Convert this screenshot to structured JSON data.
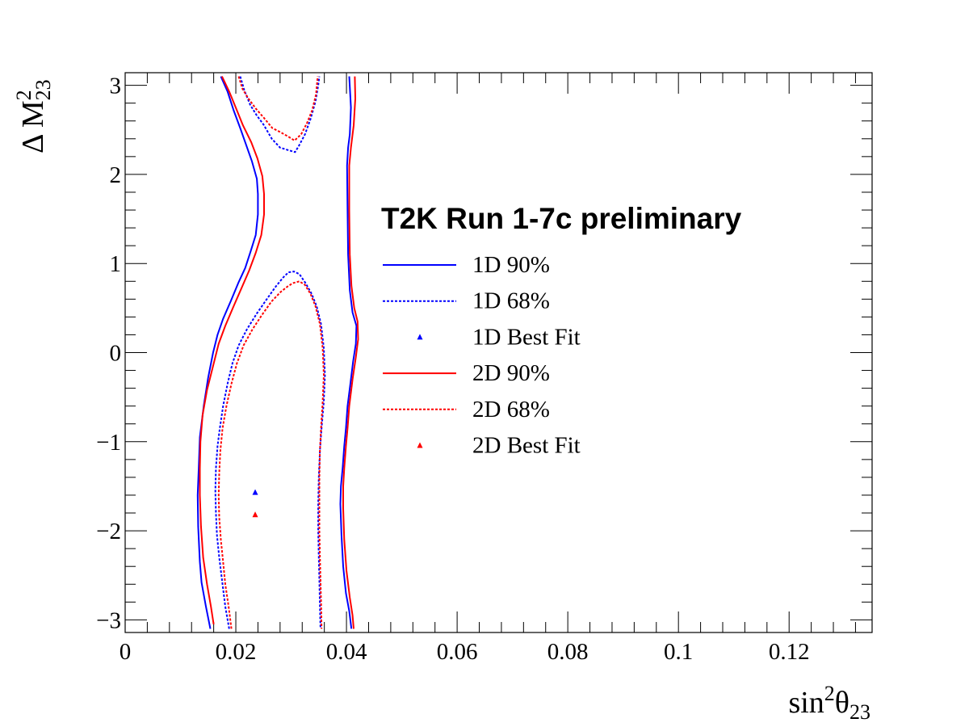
{
  "chart_data": {
    "type": "line",
    "title": "T2K Run 1-7c preliminary",
    "xlabel": {
      "base": "sin",
      "sup": "2",
      "greek": "θ",
      "sub": "23"
    },
    "ylabel": {
      "base": "Δ M",
      "sup": "2",
      "sub": "23"
    },
    "xlim": [
      0,
      0.135
    ],
    "ylim": [
      -3.14159,
      3.14159
    ],
    "x_ticks": [
      0,
      0.02,
      0.04,
      0.06,
      0.08,
      0.1,
      0.12
    ],
    "x_tick_labels": [
      "0",
      "0.02",
      "0.04",
      "0.06",
      "0.08",
      "0.1",
      "0.12"
    ],
    "y_ticks": [
      -3,
      -2,
      -1,
      0,
      1,
      2,
      3
    ],
    "y_tick_labels": [
      "−3",
      "−2",
      "−1",
      "0",
      "1",
      "2",
      "3"
    ],
    "grid": false,
    "legend_position": "upper-center",
    "series": [
      {
        "name": "1D 90%",
        "color": "#0000ff",
        "dash": "solid",
        "segments": [
          [
            [
              0.0173,
              3.1
            ],
            [
              0.0185,
              2.93
            ],
            [
              0.0196,
              2.72
            ],
            [
              0.0208,
              2.52
            ],
            [
              0.0217,
              2.36
            ],
            [
              0.0229,
              2.15
            ],
            [
              0.0238,
              1.95
            ],
            [
              0.024,
              1.78
            ],
            [
              0.024,
              1.55
            ],
            [
              0.0236,
              1.32
            ],
            [
              0.0227,
              1.14
            ],
            [
              0.0217,
              0.95
            ],
            [
              0.0205,
              0.79
            ],
            [
              0.0191,
              0.58
            ],
            [
              0.0177,
              0.38
            ],
            [
              0.0167,
              0.2
            ],
            [
              0.0159,
              0.0
            ],
            [
              0.015,
              -0.28
            ],
            [
              0.0142,
              -0.6
            ],
            [
              0.0135,
              -0.95
            ],
            [
              0.0133,
              -1.3
            ],
            [
              0.0131,
              -1.6
            ],
            [
              0.0132,
              -1.95
            ],
            [
              0.0135,
              -2.35
            ],
            [
              0.0138,
              -2.58
            ],
            [
              0.0146,
              -2.85
            ],
            [
              0.0154,
              -3.1
            ]
          ],
          [
            [
              0.0405,
              3.1
            ],
            [
              0.0408,
              2.75
            ],
            [
              0.0406,
              2.45
            ],
            [
              0.0403,
              2.3
            ],
            [
              0.0401,
              2.1
            ],
            [
              0.0402,
              1.6
            ],
            [
              0.0403,
              1.1
            ],
            [
              0.0406,
              0.7
            ],
            [
              0.0411,
              0.45
            ],
            [
              0.0418,
              0.3
            ],
            [
              0.0417,
              0.1
            ],
            [
              0.0412,
              -0.1
            ],
            [
              0.0407,
              -0.35
            ],
            [
              0.0402,
              -0.6
            ],
            [
              0.0399,
              -0.85
            ],
            [
              0.0396,
              -1.05
            ],
            [
              0.0393,
              -1.3
            ],
            [
              0.039,
              -1.5
            ],
            [
              0.0389,
              -1.7
            ],
            [
              0.0391,
              -2.05
            ],
            [
              0.0394,
              -2.4
            ],
            [
              0.0399,
              -2.7
            ],
            [
              0.0405,
              -2.9
            ],
            [
              0.0409,
              -3.1
            ]
          ]
        ]
      },
      {
        "name": "1D 68%",
        "color": "#0000ff",
        "dash": "dotted",
        "segments": [
          [
            [
              0.0208,
              3.1
            ],
            [
              0.0215,
              2.95
            ],
            [
              0.0226,
              2.78
            ],
            [
              0.0238,
              2.66
            ],
            [
              0.025,
              2.56
            ],
            [
              0.0265,
              2.4
            ],
            [
              0.028,
              2.3
            ],
            [
              0.0296,
              2.27
            ],
            [
              0.0307,
              2.25
            ],
            [
              0.0314,
              2.32
            ],
            [
              0.0325,
              2.45
            ],
            [
              0.0335,
              2.62
            ],
            [
              0.0344,
              2.82
            ],
            [
              0.0349,
              3.0
            ],
            [
              0.0351,
              3.1
            ]
          ],
          [
            [
              0.0188,
              -3.1
            ],
            [
              0.0181,
              -2.85
            ],
            [
              0.0175,
              -2.55
            ],
            [
              0.017,
              -2.3
            ],
            [
              0.0166,
              -2.05
            ],
            [
              0.0164,
              -1.8
            ],
            [
              0.0163,
              -1.55
            ],
            [
              0.0164,
              -1.3
            ],
            [
              0.0167,
              -1.05
            ],
            [
              0.0171,
              -0.85
            ],
            [
              0.0177,
              -0.6
            ],
            [
              0.0185,
              -0.35
            ],
            [
              0.0194,
              -0.12
            ],
            [
              0.0205,
              0.08
            ],
            [
              0.022,
              0.26
            ],
            [
              0.0238,
              0.44
            ],
            [
              0.0256,
              0.6
            ],
            [
              0.0272,
              0.74
            ],
            [
              0.0285,
              0.84
            ],
            [
              0.0295,
              0.9
            ],
            [
              0.0305,
              0.91
            ],
            [
              0.0315,
              0.88
            ],
            [
              0.0326,
              0.78
            ],
            [
              0.0337,
              0.66
            ],
            [
              0.0346,
              0.52
            ],
            [
              0.0354,
              0.32
            ],
            [
              0.0359,
              0.05
            ],
            [
              0.0361,
              -0.25
            ],
            [
              0.0359,
              -0.55
            ],
            [
              0.0355,
              -0.85
            ],
            [
              0.0352,
              -1.1
            ],
            [
              0.035,
              -1.4
            ],
            [
              0.0349,
              -1.7
            ],
            [
              0.0349,
              -2.0
            ],
            [
              0.035,
              -2.3
            ],
            [
              0.0351,
              -2.55
            ],
            [
              0.0352,
              -2.85
            ],
            [
              0.0353,
              -3.1
            ]
          ]
        ]
      },
      {
        "name": "1D Best Fit",
        "color": "#0000ff",
        "marker": "triangle",
        "points": [
          [
            0.0235,
            -1.57
          ]
        ]
      },
      {
        "name": "2D 90%",
        "color": "#ff0000",
        "dash": "solid",
        "segments": [
          [
            [
              0.0175,
              3.1
            ],
            [
              0.0188,
              2.93
            ],
            [
              0.02,
              2.75
            ],
            [
              0.0213,
              2.55
            ],
            [
              0.0228,
              2.36
            ],
            [
              0.0239,
              2.18
            ],
            [
              0.0248,
              1.98
            ],
            [
              0.0251,
              1.78
            ],
            [
              0.0251,
              1.55
            ],
            [
              0.0246,
              1.32
            ],
            [
              0.0236,
              1.12
            ],
            [
              0.0224,
              0.92
            ],
            [
              0.021,
              0.72
            ],
            [
              0.0196,
              0.52
            ],
            [
              0.0181,
              0.3
            ],
            [
              0.0169,
              0.1
            ],
            [
              0.0159,
              -0.15
            ],
            [
              0.0148,
              -0.42
            ],
            [
              0.014,
              -0.7
            ],
            [
              0.0136,
              -1.0
            ],
            [
              0.0135,
              -1.3
            ],
            [
              0.0135,
              -1.6
            ],
            [
              0.0137,
              -1.95
            ],
            [
              0.0141,
              -2.3
            ],
            [
              0.0148,
              -2.6
            ],
            [
              0.0155,
              -2.85
            ],
            [
              0.016,
              -3.05
            ]
          ],
          [
            [
              0.0415,
              3.1
            ],
            [
              0.0416,
              2.85
            ],
            [
              0.0413,
              2.55
            ],
            [
              0.0408,
              2.3
            ],
            [
              0.0405,
              2.1
            ],
            [
              0.0405,
              1.6
            ],
            [
              0.0406,
              1.1
            ],
            [
              0.0409,
              0.75
            ],
            [
              0.0414,
              0.5
            ],
            [
              0.042,
              0.35
            ],
            [
              0.0421,
              0.15
            ],
            [
              0.0417,
              -0.05
            ],
            [
              0.0411,
              -0.3
            ],
            [
              0.0405,
              -0.6
            ],
            [
              0.0402,
              -0.85
            ],
            [
              0.0399,
              -1.05
            ],
            [
              0.0396,
              -1.3
            ],
            [
              0.0394,
              -1.5
            ],
            [
              0.0394,
              -1.75
            ],
            [
              0.0396,
              -2.1
            ],
            [
              0.04,
              -2.45
            ],
            [
              0.0406,
              -2.75
            ],
            [
              0.0411,
              -2.95
            ],
            [
              0.0413,
              -3.1
            ]
          ]
        ]
      },
      {
        "name": "2D 68%",
        "color": "#ff0000",
        "dash": "dotted",
        "segments": [
          [
            [
              0.0205,
              3.1
            ],
            [
              0.0212,
              2.96
            ],
            [
              0.0223,
              2.85
            ],
            [
              0.0236,
              2.74
            ],
            [
              0.025,
              2.64
            ],
            [
              0.0266,
              2.52
            ],
            [
              0.0282,
              2.47
            ],
            [
              0.0296,
              2.42
            ],
            [
              0.0306,
              2.38
            ],
            [
              0.0318,
              2.45
            ],
            [
              0.0329,
              2.58
            ],
            [
              0.0338,
              2.72
            ],
            [
              0.0345,
              2.9
            ],
            [
              0.0348,
              3.1
            ]
          ],
          [
            [
              0.0192,
              -3.1
            ],
            [
              0.0187,
              -2.85
            ],
            [
              0.0181,
              -2.6
            ],
            [
              0.0177,
              -2.35
            ],
            [
              0.0173,
              -2.1
            ],
            [
              0.017,
              -1.85
            ],
            [
              0.0169,
              -1.6
            ],
            [
              0.017,
              -1.35
            ],
            [
              0.0172,
              -1.1
            ],
            [
              0.0176,
              -0.85
            ],
            [
              0.0183,
              -0.6
            ],
            [
              0.0192,
              -0.35
            ],
            [
              0.0202,
              -0.12
            ],
            [
              0.0214,
              0.08
            ],
            [
              0.023,
              0.26
            ],
            [
              0.0247,
              0.42
            ],
            [
              0.0264,
              0.57
            ],
            [
              0.0281,
              0.68
            ],
            [
              0.0293,
              0.74
            ],
            [
              0.0303,
              0.78
            ],
            [
              0.0315,
              0.8
            ],
            [
              0.0325,
              0.76
            ],
            [
              0.0335,
              0.66
            ],
            [
              0.0344,
              0.52
            ],
            [
              0.0352,
              0.32
            ],
            [
              0.0357,
              0.05
            ],
            [
              0.0359,
              -0.25
            ],
            [
              0.0357,
              -0.55
            ],
            [
              0.0354,
              -0.85
            ],
            [
              0.0352,
              -1.1
            ],
            [
              0.0351,
              -1.4
            ],
            [
              0.0351,
              -1.7
            ],
            [
              0.0351,
              -2.0
            ],
            [
              0.0352,
              -2.3
            ],
            [
              0.0353,
              -2.55
            ],
            [
              0.0354,
              -2.8
            ],
            [
              0.0355,
              -3.1
            ]
          ]
        ]
      },
      {
        "name": "2D Best Fit",
        "color": "#ff0000",
        "marker": "triangle",
        "points": [
          [
            0.0235,
            -1.82
          ]
        ]
      }
    ]
  }
}
